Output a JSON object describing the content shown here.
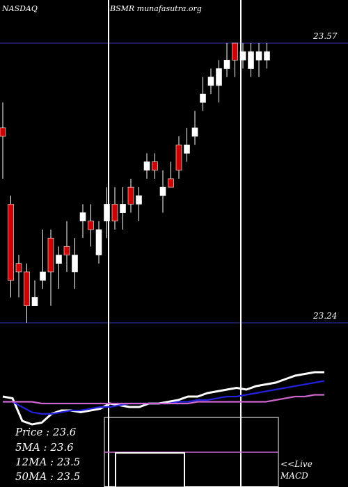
{
  "header": {
    "exchange": "NASDAQ",
    "ticker_site": "BSMR munafasutra.org"
  },
  "price_panel": {
    "upper_level_label": "23.57",
    "lower_level_label": "23.24"
  },
  "stats": {
    "price": "Price : 23.6",
    "ma5": "5MA : 23.6",
    "ma12": "12MA : 23.5",
    "ma50": "50MA : 23.5"
  },
  "macd_panel": {
    "live_label": "<<Live",
    "name_label": "MACD"
  },
  "colors": {
    "background": "#000000",
    "up_candle": "#ffffff",
    "down_candle": "#cc0000",
    "level_line": "#1a1a5a",
    "ma_short": "#ffffff",
    "ma_medium": "#2222dd",
    "ma_long": "#cc66cc",
    "macd_line": "#ffffff",
    "macd_signal": "#cc66cc"
  },
  "chart_data": {
    "type": "candlestick",
    "ylim": [
      23.22,
      23.62
    ],
    "levels": [
      23.57,
      23.24
    ],
    "candles": [
      {
        "o": 23.47,
        "c": 23.46,
        "h": 23.5,
        "l": 23.41,
        "dir": "down"
      },
      {
        "o": 23.38,
        "c": 23.29,
        "h": 23.39,
        "l": 23.27,
        "dir": "down"
      },
      {
        "o": 23.31,
        "c": 23.3,
        "h": 23.32,
        "l": 23.27,
        "dir": "down"
      },
      {
        "o": 23.3,
        "c": 23.26,
        "h": 23.31,
        "l": 23.24,
        "dir": "down"
      },
      {
        "o": 23.26,
        "c": 23.27,
        "h": 23.29,
        "l": 23.26,
        "dir": "up"
      },
      {
        "o": 23.29,
        "c": 23.3,
        "h": 23.35,
        "l": 23.28,
        "dir": "up"
      },
      {
        "o": 23.34,
        "c": 23.3,
        "h": 23.35,
        "l": 23.26,
        "dir": "down"
      },
      {
        "o": 23.31,
        "c": 23.32,
        "h": 23.33,
        "l": 23.28,
        "dir": "up"
      },
      {
        "o": 23.33,
        "c": 23.32,
        "h": 23.36,
        "l": 23.3,
        "dir": "down"
      },
      {
        "o": 23.3,
        "c": 23.32,
        "h": 23.34,
        "l": 23.28,
        "dir": "up"
      },
      {
        "o": 23.36,
        "c": 23.37,
        "h": 23.38,
        "l": 23.34,
        "dir": "up"
      },
      {
        "o": 23.36,
        "c": 23.35,
        "h": 23.38,
        "l": 23.33,
        "dir": "down"
      },
      {
        "o": 23.32,
        "c": 23.35,
        "h": 23.36,
        "l": 23.31,
        "dir": "up"
      },
      {
        "o": 23.36,
        "c": 23.38,
        "h": 23.4,
        "l": 23.34,
        "dir": "up"
      },
      {
        "o": 23.38,
        "c": 23.36,
        "h": 23.4,
        "l": 23.35,
        "dir": "down"
      },
      {
        "o": 23.37,
        "c": 23.38,
        "h": 23.4,
        "l": 23.35,
        "dir": "up"
      },
      {
        "o": 23.4,
        "c": 23.38,
        "h": 23.41,
        "l": 23.37,
        "dir": "down"
      },
      {
        "o": 23.38,
        "c": 23.39,
        "h": 23.4,
        "l": 23.36,
        "dir": "up"
      },
      {
        "o": 23.42,
        "c": 23.43,
        "h": 23.44,
        "l": 23.41,
        "dir": "up"
      },
      {
        "o": 23.43,
        "c": 23.42,
        "h": 23.44,
        "l": 23.41,
        "dir": "down"
      },
      {
        "o": 23.39,
        "c": 23.4,
        "h": 23.42,
        "l": 23.37,
        "dir": "up"
      },
      {
        "o": 23.41,
        "c": 23.4,
        "h": 23.43,
        "l": 23.4,
        "dir": "down"
      },
      {
        "o": 23.45,
        "c": 23.42,
        "h": 23.46,
        "l": 23.41,
        "dir": "down"
      },
      {
        "o": 23.44,
        "c": 23.45,
        "h": 23.47,
        "l": 23.43,
        "dir": "up"
      },
      {
        "o": 23.46,
        "c": 23.47,
        "h": 23.49,
        "l": 23.45,
        "dir": "up"
      },
      {
        "o": 23.5,
        "c": 23.51,
        "h": 23.53,
        "l": 23.49,
        "dir": "up"
      },
      {
        "o": 23.52,
        "c": 23.53,
        "h": 23.54,
        "l": 23.51,
        "dir": "up"
      },
      {
        "o": 23.52,
        "c": 23.54,
        "h": 23.55,
        "l": 23.5,
        "dir": "up"
      },
      {
        "o": 23.54,
        "c": 23.55,
        "h": 23.57,
        "l": 23.53,
        "dir": "up"
      },
      {
        "o": 23.57,
        "c": 23.55,
        "h": 23.57,
        "l": 23.53,
        "dir": "down"
      },
      {
        "o": 23.55,
        "c": 23.56,
        "h": 23.57,
        "l": 23.54,
        "dir": "up"
      },
      {
        "o": 23.54,
        "c": 23.56,
        "h": 23.57,
        "l": 23.53,
        "dir": "up"
      },
      {
        "o": 23.55,
        "c": 23.56,
        "h": 23.57,
        "l": 23.53,
        "dir": "up"
      },
      {
        "o": 23.55,
        "c": 23.56,
        "h": 23.57,
        "l": 23.54,
        "dir": "up"
      }
    ],
    "ma_series": [
      {
        "key": "ma_short",
        "values": [
          0.02,
          0.01,
          -0.12,
          -0.14,
          -0.13,
          -0.08,
          -0.06,
          -0.06,
          -0.07,
          -0.06,
          -0.05,
          -0.02,
          -0.03,
          -0.04,
          -0.04,
          -0.02,
          -0.02,
          -0.01,
          0.0,
          0.02,
          0.02,
          0.04,
          0.05,
          0.06,
          0.07,
          0.06,
          0.08,
          0.09,
          0.1,
          0.12,
          0.14,
          0.15,
          0.16,
          0.16
        ]
      },
      {
        "key": "ma_medium",
        "values": [
          -0.01,
          -0.01,
          -0.04,
          -0.07,
          -0.08,
          -0.08,
          -0.07,
          -0.06,
          -0.06,
          -0.05,
          -0.04,
          -0.04,
          -0.03,
          -0.02,
          -0.02,
          -0.02,
          -0.02,
          -0.02,
          -0.01,
          -0.01,
          0.0,
          0.0,
          0.01,
          0.02,
          0.02,
          0.03,
          0.04,
          0.05,
          0.06,
          0.07,
          0.08,
          0.09,
          0.1,
          0.11
        ]
      },
      {
        "key": "ma_long",
        "values": [
          -0.01,
          -0.01,
          -0.01,
          -0.01,
          -0.02,
          -0.02,
          -0.02,
          -0.02,
          -0.02,
          -0.02,
          -0.02,
          -0.02,
          -0.02,
          -0.02,
          -0.02,
          -0.02,
          -0.02,
          -0.02,
          -0.02,
          -0.02,
          -0.01,
          -0.01,
          -0.01,
          -0.01,
          -0.01,
          -0.01,
          -0.01,
          -0.01,
          0.0,
          0.01,
          0.02,
          0.02,
          0.03,
          0.03
        ]
      }
    ],
    "macd": {
      "line": [
        0.0,
        0.0,
        0.0,
        0.0,
        0.0,
        0.0,
        0.0,
        0.01,
        0.01,
        0.01,
        0.01,
        0.01,
        0.01,
        0.01,
        0.01,
        0.01,
        0.01,
        0.01,
        0.0,
        0.0,
        0.0,
        0.0,
        0.0,
        0.0,
        0.0,
        0.0,
        0.0,
        0.0,
        0.0,
        0.0,
        0.0,
        0.0,
        0.0,
        0.0
      ],
      "signal": [
        0.0,
        0.0,
        0.0,
        0.0,
        0.0,
        0.0,
        0.0,
        0.0,
        0.0,
        0.0,
        0.0,
        0.0,
        0.0,
        0.0,
        0.0,
        0.0,
        0.0,
        0.0,
        0.0,
        0.0,
        0.0,
        0.0,
        0.0,
        0.0,
        0.0,
        0.0,
        0.0,
        0.0,
        0.0,
        0.0,
        0.0,
        0.0,
        0.0,
        0.0
      ]
    }
  }
}
